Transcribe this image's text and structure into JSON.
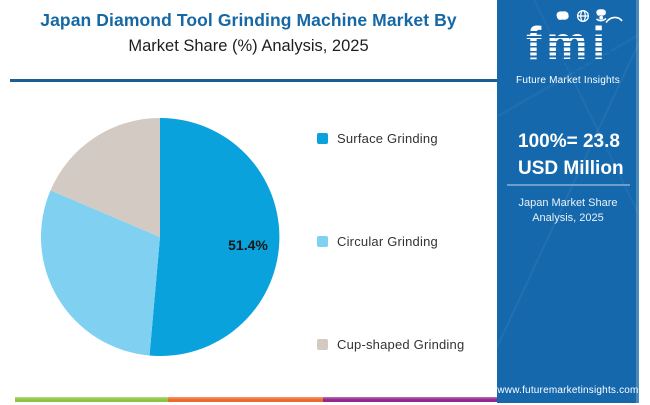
{
  "colors": {
    "panel_blue": "#1568ac",
    "brand_blue": "#1568a5",
    "rule_blue": "#1b5e93",
    "stripe_green": "#8cc63f",
    "stripe_orange": "#ee6a2c",
    "stripe_purple": "#92278f"
  },
  "header": {
    "title_line1": "Japan Diamond Tool Grinding Machine Market By",
    "title_line2": "Market Share (%) Analysis, 2025"
  },
  "brand": {
    "logo_text": "fmi",
    "logo_subtitle": "Future Market Insights",
    "icons": [
      "map-icon",
      "globe-icon",
      "person-globe-icon",
      "swoosh-arc-icon"
    ]
  },
  "panel": {
    "headline_line1": "100%= 23.8",
    "headline_line2": "USD Million",
    "caption_line1": "Japan Market Share",
    "caption_line2": "Analysis, 2025",
    "website": "www.futuremarketinsights.com"
  },
  "chart_data": {
    "type": "pie",
    "title": "Japan Diamond Tool Grinding Machine Market By Market Share (%) Analysis, 2025",
    "total_label": "100%= 23.8 USD Million",
    "unit": "%",
    "legend_position": "right",
    "start_angle_deg": 0,
    "direction": "clockwise",
    "slices": [
      {
        "label": "Surface Grinding",
        "value": 51.4,
        "color": "#09a2dc",
        "data_label": "51.4%"
      },
      {
        "label": "Circular Grinding",
        "value": 30.0,
        "color": "#7fd0f1",
        "data_label": ""
      },
      {
        "label": "Cup-shaped Grinding",
        "value": 18.6,
        "color": "#d3cac3",
        "data_label": ""
      }
    ]
  }
}
